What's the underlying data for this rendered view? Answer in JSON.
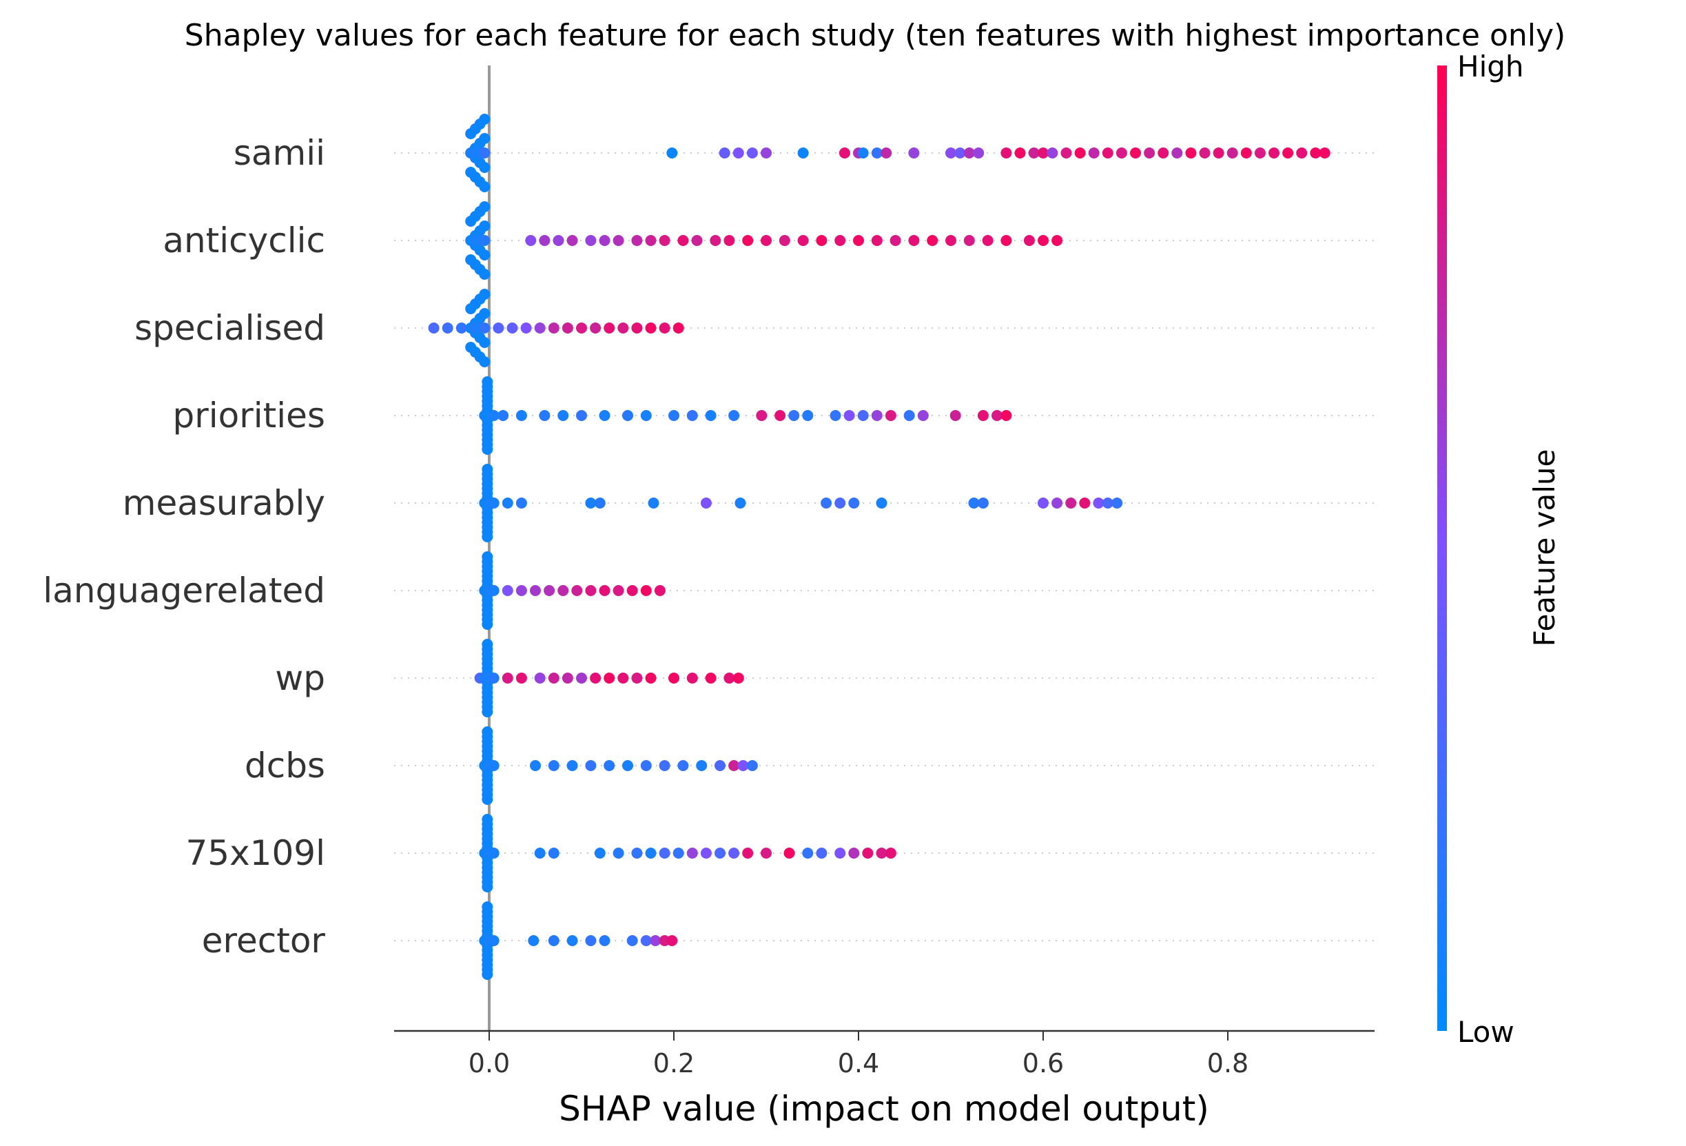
{
  "chart_data": {
    "type": "scatter",
    "title": "Shapley values for each feature for each study (ten features with highest importance only)",
    "xlabel": "SHAP value (impact on model output)",
    "xlim": [
      -0.1,
      0.95
    ],
    "xticks": [
      "0.0",
      "0.2",
      "0.4",
      "0.6",
      "0.8"
    ],
    "grid": "dotted row guides",
    "colorbar": {
      "label": "Feature value",
      "high_label": "High",
      "low_label": "Low",
      "low_color": "#008bfb",
      "mid_color": "#7c52ff",
      "high_color": "#ff0052"
    },
    "features": [
      {
        "name": "samii",
        "points": [
          [
            -0.02,
            0.1
          ],
          [
            -0.015,
            0.1
          ],
          [
            -0.01,
            0.1
          ],
          [
            -0.005,
            0.2
          ],
          [
            0.198,
            0.05
          ],
          [
            0.255,
            0.4
          ],
          [
            0.27,
            0.5
          ],
          [
            0.285,
            0.45
          ],
          [
            0.3,
            0.6
          ],
          [
            0.34,
            0.05
          ],
          [
            0.385,
            0.9
          ],
          [
            0.4,
            0.7
          ],
          [
            0.405,
            0.1
          ],
          [
            0.42,
            0.2
          ],
          [
            0.43,
            0.75
          ],
          [
            0.46,
            0.6
          ],
          [
            0.5,
            0.55
          ],
          [
            0.51,
            0.45
          ],
          [
            0.52,
            0.7
          ],
          [
            0.53,
            0.6
          ],
          [
            0.56,
            0.9
          ],
          [
            0.575,
            0.95
          ],
          [
            0.59,
            0.8
          ],
          [
            0.6,
            0.9
          ],
          [
            0.61,
            0.6
          ],
          [
            0.625,
            0.85
          ],
          [
            0.64,
            0.95
          ],
          [
            0.655,
            0.75
          ],
          [
            0.67,
            0.9
          ],
          [
            0.685,
            0.85
          ],
          [
            0.7,
            0.95
          ],
          [
            0.715,
            0.8
          ],
          [
            0.73,
            0.9
          ],
          [
            0.745,
            0.7
          ],
          [
            0.76,
            0.95
          ],
          [
            0.775,
            0.85
          ],
          [
            0.79,
            0.9
          ],
          [
            0.805,
            0.8
          ],
          [
            0.82,
            0.95
          ],
          [
            0.835,
            0.85
          ],
          [
            0.85,
            0.9
          ],
          [
            0.865,
            0.95
          ],
          [
            0.88,
            0.9
          ],
          [
            0.895,
            0.95
          ],
          [
            0.905,
            0.95
          ]
        ]
      },
      {
        "name": "anticyclic",
        "points": [
          [
            -0.015,
            0.1
          ],
          [
            -0.01,
            0.1
          ],
          [
            -0.005,
            0.15
          ],
          [
            0.045,
            0.55
          ],
          [
            0.06,
            0.65
          ],
          [
            0.075,
            0.6
          ],
          [
            0.09,
            0.7
          ],
          [
            0.11,
            0.6
          ],
          [
            0.125,
            0.65
          ],
          [
            0.14,
            0.7
          ],
          [
            0.16,
            0.75
          ],
          [
            0.175,
            0.8
          ],
          [
            0.19,
            0.85
          ],
          [
            0.21,
            0.9
          ],
          [
            0.225,
            0.8
          ],
          [
            0.245,
            0.85
          ],
          [
            0.26,
            0.9
          ],
          [
            0.28,
            0.95
          ],
          [
            0.3,
            0.9
          ],
          [
            0.32,
            0.85
          ],
          [
            0.34,
            0.9
          ],
          [
            0.36,
            0.95
          ],
          [
            0.38,
            0.9
          ],
          [
            0.4,
            0.95
          ],
          [
            0.42,
            0.9
          ],
          [
            0.44,
            0.85
          ],
          [
            0.46,
            0.9
          ],
          [
            0.48,
            0.95
          ],
          [
            0.5,
            0.9
          ],
          [
            0.52,
            0.85
          ],
          [
            0.54,
            0.9
          ],
          [
            0.56,
            0.95
          ],
          [
            0.585,
            0.9
          ],
          [
            0.6,
            0.95
          ],
          [
            0.615,
            0.95
          ]
        ]
      },
      {
        "name": "specialised",
        "points": [
          [
            -0.06,
            0.3
          ],
          [
            -0.045,
            0.25
          ],
          [
            -0.03,
            0.2
          ],
          [
            -0.015,
            0.15
          ],
          [
            -0.01,
            0.1
          ],
          [
            -0.005,
            0.2
          ],
          [
            0.01,
            0.35
          ],
          [
            0.025,
            0.4
          ],
          [
            0.04,
            0.5
          ],
          [
            0.055,
            0.6
          ],
          [
            0.07,
            0.75
          ],
          [
            0.085,
            0.8
          ],
          [
            0.1,
            0.85
          ],
          [
            0.115,
            0.8
          ],
          [
            0.13,
            0.9
          ],
          [
            0.145,
            0.85
          ],
          [
            0.16,
            0.9
          ],
          [
            0.175,
            0.95
          ],
          [
            0.19,
            0.9
          ],
          [
            0.205,
            0.95
          ]
        ]
      },
      {
        "name": "priorities",
        "points": [
          [
            -0.005,
            0.05
          ],
          [
            0.005,
            0.1
          ],
          [
            0.015,
            0.15
          ],
          [
            0.035,
            0.1
          ],
          [
            0.06,
            0.15
          ],
          [
            0.08,
            0.1
          ],
          [
            0.1,
            0.2
          ],
          [
            0.125,
            0.1
          ],
          [
            0.15,
            0.15
          ],
          [
            0.17,
            0.1
          ],
          [
            0.2,
            0.15
          ],
          [
            0.22,
            0.2
          ],
          [
            0.24,
            0.1
          ],
          [
            0.265,
            0.15
          ],
          [
            0.295,
            0.85
          ],
          [
            0.315,
            0.9
          ],
          [
            0.33,
            0.2
          ],
          [
            0.345,
            0.15
          ],
          [
            0.375,
            0.2
          ],
          [
            0.39,
            0.5
          ],
          [
            0.405,
            0.3
          ],
          [
            0.42,
            0.6
          ],
          [
            0.435,
            0.85
          ],
          [
            0.455,
            0.2
          ],
          [
            0.47,
            0.6
          ],
          [
            0.505,
            0.8
          ],
          [
            0.535,
            0.9
          ],
          [
            0.55,
            0.85
          ],
          [
            0.56,
            0.95
          ]
        ]
      },
      {
        "name": "measurably",
        "points": [
          [
            -0.005,
            0.05
          ],
          [
            0.0,
            0.1
          ],
          [
            0.005,
            0.1
          ],
          [
            0.02,
            0.1
          ],
          [
            0.035,
            0.15
          ],
          [
            0.11,
            0.1
          ],
          [
            0.12,
            0.15
          ],
          [
            0.178,
            0.1
          ],
          [
            0.235,
            0.5
          ],
          [
            0.272,
            0.1
          ],
          [
            0.365,
            0.2
          ],
          [
            0.38,
            0.3
          ],
          [
            0.395,
            0.2
          ],
          [
            0.425,
            0.1
          ],
          [
            0.525,
            0.15
          ],
          [
            0.535,
            0.2
          ],
          [
            0.6,
            0.5
          ],
          [
            0.615,
            0.6
          ],
          [
            0.63,
            0.8
          ],
          [
            0.645,
            0.9
          ],
          [
            0.66,
            0.5
          ],
          [
            0.67,
            0.3
          ],
          [
            0.68,
            0.2
          ]
        ]
      },
      {
        "name": "languagerelated",
        "points": [
          [
            -0.005,
            0.05
          ],
          [
            0.0,
            0.1
          ],
          [
            0.005,
            0.1
          ],
          [
            0.02,
            0.5
          ],
          [
            0.035,
            0.6
          ],
          [
            0.05,
            0.65
          ],
          [
            0.065,
            0.7
          ],
          [
            0.08,
            0.75
          ],
          [
            0.095,
            0.8
          ],
          [
            0.11,
            0.85
          ],
          [
            0.125,
            0.9
          ],
          [
            0.14,
            0.85
          ],
          [
            0.155,
            0.9
          ],
          [
            0.17,
            0.95
          ],
          [
            0.185,
            0.9
          ]
        ]
      },
      {
        "name": "wp",
        "points": [
          [
            -0.01,
            0.3
          ],
          [
            -0.005,
            0.1
          ],
          [
            0.0,
            0.1
          ],
          [
            0.005,
            0.15
          ],
          [
            0.02,
            0.85
          ],
          [
            0.035,
            0.9
          ],
          [
            0.055,
            0.6
          ],
          [
            0.07,
            0.8
          ],
          [
            0.085,
            0.75
          ],
          [
            0.1,
            0.65
          ],
          [
            0.115,
            0.9
          ],
          [
            0.13,
            0.95
          ],
          [
            0.145,
            0.9
          ],
          [
            0.16,
            0.85
          ],
          [
            0.175,
            0.95
          ],
          [
            0.2,
            0.95
          ],
          [
            0.22,
            0.9
          ],
          [
            0.24,
            0.95
          ],
          [
            0.26,
            0.9
          ],
          [
            0.27,
            0.95
          ]
        ]
      },
      {
        "name": "dcbs",
        "points": [
          [
            -0.005,
            0.05
          ],
          [
            0.0,
            0.1
          ],
          [
            0.005,
            0.1
          ],
          [
            0.05,
            0.1
          ],
          [
            0.07,
            0.15
          ],
          [
            0.09,
            0.1
          ],
          [
            0.11,
            0.2
          ],
          [
            0.13,
            0.15
          ],
          [
            0.15,
            0.1
          ],
          [
            0.17,
            0.2
          ],
          [
            0.19,
            0.25
          ],
          [
            0.21,
            0.2
          ],
          [
            0.23,
            0.1
          ],
          [
            0.25,
            0.3
          ],
          [
            0.265,
            0.8
          ],
          [
            0.275,
            0.5
          ],
          [
            0.285,
            0.2
          ]
        ]
      },
      {
        "name": "75x109l",
        "points": [
          [
            -0.005,
            0.05
          ],
          [
            0.0,
            0.1
          ],
          [
            0.005,
            0.1
          ],
          [
            0.055,
            0.1
          ],
          [
            0.07,
            0.15
          ],
          [
            0.12,
            0.1
          ],
          [
            0.14,
            0.15
          ],
          [
            0.16,
            0.2
          ],
          [
            0.175,
            0.1
          ],
          [
            0.19,
            0.3
          ],
          [
            0.205,
            0.2
          ],
          [
            0.22,
            0.6
          ],
          [
            0.235,
            0.5
          ],
          [
            0.25,
            0.3
          ],
          [
            0.265,
            0.4
          ],
          [
            0.28,
            0.9
          ],
          [
            0.3,
            0.85
          ],
          [
            0.325,
            0.95
          ],
          [
            0.345,
            0.2
          ],
          [
            0.36,
            0.3
          ],
          [
            0.38,
            0.5
          ],
          [
            0.395,
            0.7
          ],
          [
            0.41,
            0.9
          ],
          [
            0.425,
            0.85
          ],
          [
            0.435,
            0.9
          ]
        ]
      },
      {
        "name": "erector",
        "points": [
          [
            -0.005,
            0.05
          ],
          [
            0.0,
            0.1
          ],
          [
            0.005,
            0.1
          ],
          [
            0.048,
            0.1
          ],
          [
            0.07,
            0.15
          ],
          [
            0.09,
            0.1
          ],
          [
            0.11,
            0.2
          ],
          [
            0.125,
            0.15
          ],
          [
            0.155,
            0.2
          ],
          [
            0.17,
            0.3
          ],
          [
            0.18,
            0.6
          ],
          [
            0.19,
            0.85
          ],
          [
            0.198,
            0.9
          ]
        ]
      }
    ]
  }
}
